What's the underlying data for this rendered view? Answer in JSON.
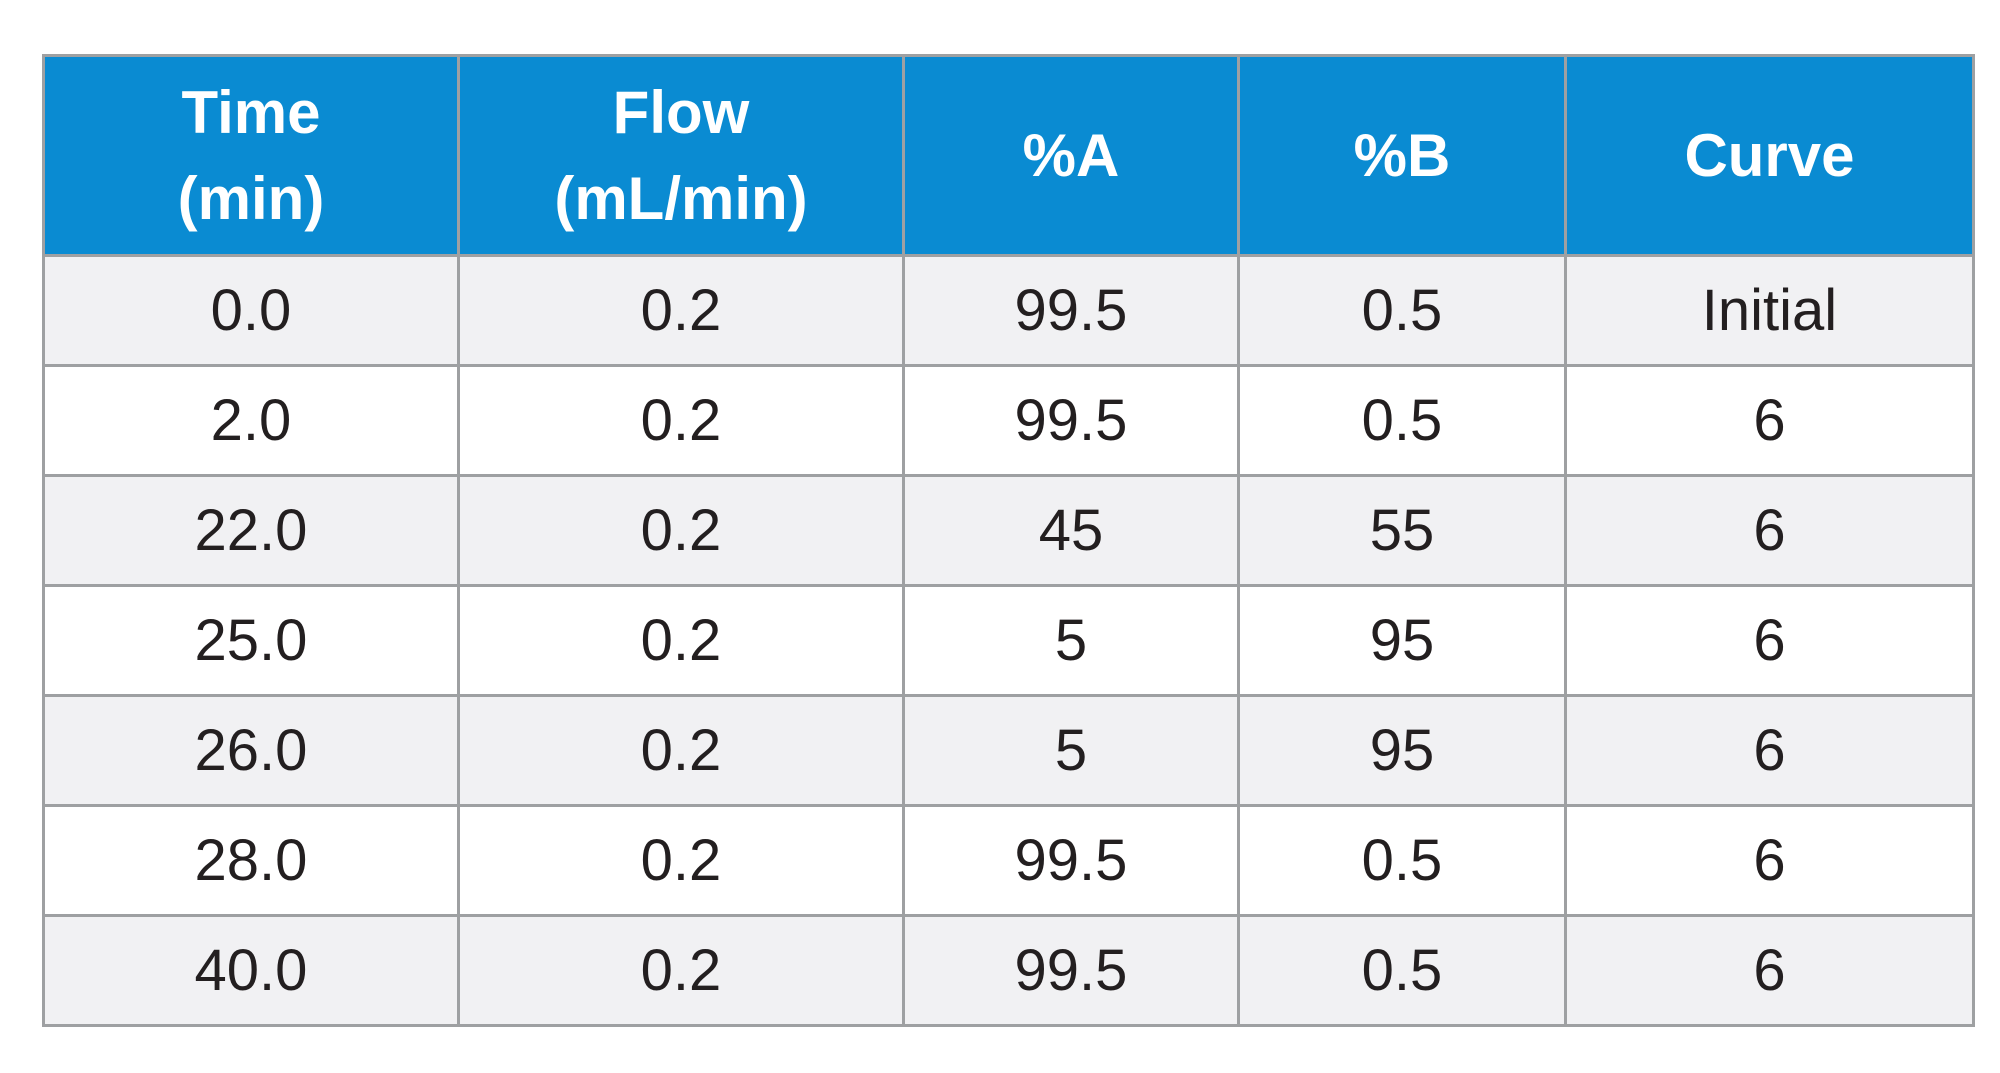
{
  "table": {
    "headers": [
      [
        "Time",
        "(min)"
      ],
      [
        "Flow",
        "(mL/min)"
      ],
      [
        "%A"
      ],
      [
        "%B"
      ],
      [
        "Curve"
      ]
    ],
    "rows": [
      [
        "0.0",
        "0.2",
        "99.5",
        "0.5",
        "Initial"
      ],
      [
        "2.0",
        "0.2",
        "99.5",
        "0.5",
        "6"
      ],
      [
        "22.0",
        "0.2",
        "45",
        "55",
        "6"
      ],
      [
        "25.0",
        "0.2",
        "5",
        "95",
        "6"
      ],
      [
        "26.0",
        "0.2",
        "5",
        "95",
        "6"
      ],
      [
        "28.0",
        "0.2",
        "99.5",
        "0.5",
        "6"
      ],
      [
        "40.0",
        "0.2",
        "99.5",
        "0.5",
        "6"
      ]
    ]
  },
  "colors": {
    "header_background": "#0a8bd2",
    "header_text": "#ffffff",
    "body_text": "#231f20",
    "stripe_row": "#f1f1f3",
    "plain_row": "#ffffff",
    "grid_line": "#9ea0a2"
  }
}
